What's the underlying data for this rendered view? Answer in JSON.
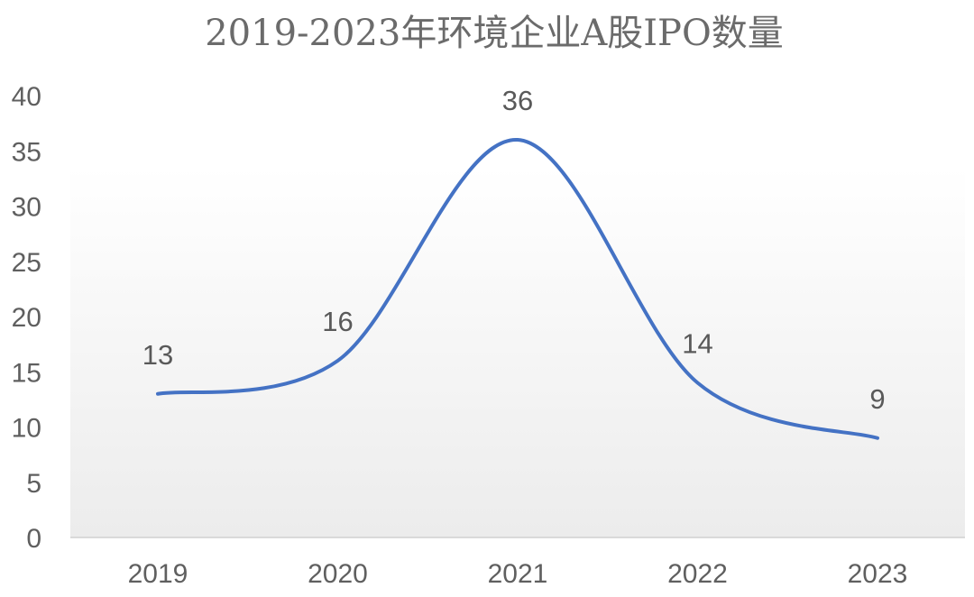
{
  "chart_data": {
    "type": "line",
    "title": "2019-2023年环境企业A股IPO数量",
    "categories": [
      "2019",
      "2020",
      "2021",
      "2022",
      "2023"
    ],
    "series": [
      {
        "values": [
          13,
          16,
          36,
          14,
          9
        ]
      }
    ],
    "ylim": [
      0,
      40
    ],
    "yticks": [
      0,
      5,
      10,
      15,
      20,
      25,
      30,
      35,
      40
    ],
    "smooth": true,
    "data_labels": true,
    "grid": false,
    "legend": "none",
    "line_color": "#4472c4",
    "title_color": "#6b6b6b",
    "text_color": "#5f5f5f"
  }
}
